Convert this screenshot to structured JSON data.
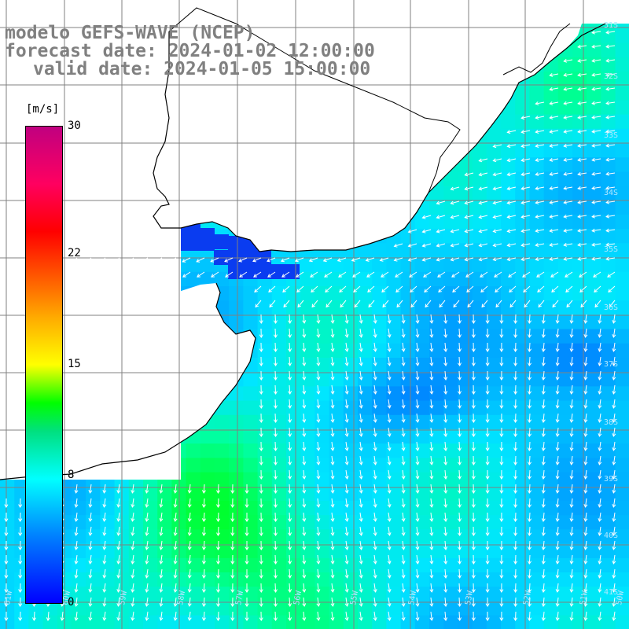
{
  "header": {
    "model": "modelo GEFS-WAVE (NCEP)",
    "forecast": "forecast date: 2024-01-02 12:00:00",
    "valid": "valid date: 2024-01-05 15:00:00"
  },
  "colorbar": {
    "unit": "[m/s]",
    "ticks": [
      {
        "label": "30",
        "value": 30
      },
      {
        "label": "22",
        "value": 22
      },
      {
        "label": "15",
        "value": 15
      },
      {
        "label": "8",
        "value": 8
      },
      {
        "label": "0",
        "value": 0
      }
    ]
  },
  "map": {
    "lon_range": [
      -61,
      -50
    ],
    "lat_range": [
      -41.5,
      -31
    ],
    "lat_labels": [
      "31S",
      "32S",
      "33S",
      "34S",
      "35S",
      "36S",
      "37S",
      "38S",
      "39S",
      "40S",
      "41S"
    ],
    "lon_labels": [
      "61W",
      "60W",
      "59W",
      "58W",
      "57W",
      "56W",
      "55W",
      "54W",
      "53W",
      "52W",
      "51W",
      "50W"
    ],
    "colors": {
      "land": "#ffffff",
      "coast": "#000000",
      "grid": "#808080",
      "arrows": "#ffffff",
      "header_text": "#808080"
    },
    "field": "wind speed with direction arrows"
  }
}
